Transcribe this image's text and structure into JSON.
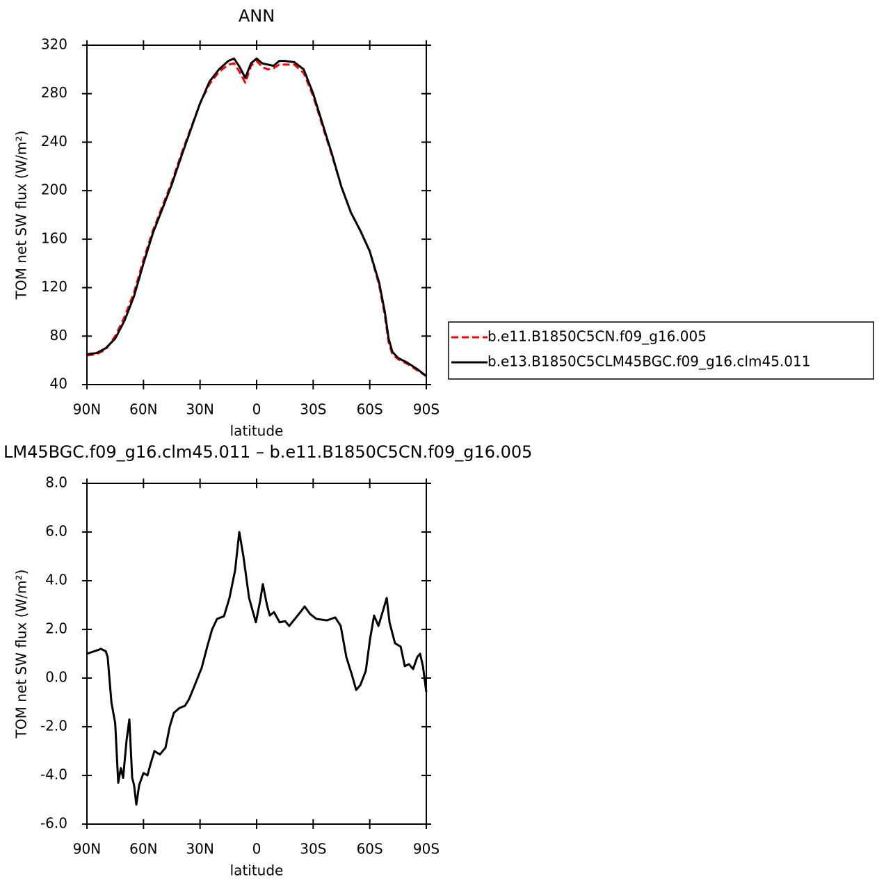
{
  "chart_data": [
    {
      "type": "line",
      "title": "ANN",
      "xlabel": "latitude",
      "ylabel": "TOM net SW flux (W/m²)",
      "x": [
        90,
        85,
        80,
        75,
        70,
        65,
        60,
        55,
        50,
        45,
        40,
        35,
        30,
        25,
        20,
        15,
        12,
        9,
        6,
        3,
        0,
        -3,
        -6,
        -9,
        -12,
        -15,
        -20,
        -25,
        -30,
        -35,
        -40,
        -45,
        -50,
        -55,
        -60,
        -65,
        -68,
        -70,
        -72,
        -75,
        -80,
        -85,
        -90
      ],
      "xlim": [
        90,
        -90
      ],
      "xticks": [
        {
          "value": 90,
          "label": "90N"
        },
        {
          "value": 60,
          "label": "60N"
        },
        {
          "value": 30,
          "label": "30N"
        },
        0,
        {
          "value": -30,
          "label": "30S"
        },
        {
          "value": -60,
          "label": "60S"
        },
        {
          "value": -90,
          "label": "90S"
        }
      ],
      "ylim": [
        40,
        320
      ],
      "yticks": [
        40,
        80,
        120,
        160,
        200,
        240,
        280,
        320
      ],
      "series": [
        {
          "name": "b.e11.B1850C5CN.f09_g16.005",
          "color": "#ff0000",
          "line_style": "dashed",
          "values": [
            64,
            65,
            69,
            80,
            96,
            116,
            143,
            167,
            187,
            207,
            230,
            251,
            272,
            288,
            298,
            304,
            305,
            298,
            289,
            303,
            307,
            302,
            300,
            301,
            304,
            304,
            304,
            297,
            278,
            253,
            229,
            203,
            182,
            167,
            150,
            122,
            97,
            75,
            65,
            61,
            57,
            52,
            47
          ]
        },
        {
          "name": "b.e13.B1850C5CLM45BGC.f09_g16.clm45.011",
          "color": "#000000",
          "line_style": "solid",
          "values": [
            65,
            66,
            70,
            78,
            93,
            113,
            140,
            165,
            185,
            205,
            228,
            250,
            272,
            290,
            300,
            307,
            309,
            302,
            293,
            305,
            309,
            305,
            304,
            303,
            307,
            307,
            306,
            300,
            280,
            255,
            230,
            203,
            182,
            167,
            150,
            124,
            100,
            78,
            67,
            62,
            58,
            53,
            47
          ]
        }
      ]
    },
    {
      "type": "line",
      "title": "LM45BGC.f09_g16.clm45.011 – b.e11.B1850C5CN.f09_g16.005",
      "xlabel": "latitude",
      "ylabel": "TOM net SW flux (W/m²)",
      "x": [
        90,
        84.5,
        82.6,
        80,
        79,
        77,
        75,
        73.4,
        72,
        70.8,
        69,
        67.5,
        66,
        65,
        63.8,
        62.3,
        60,
        57.9,
        56.4,
        54.2,
        51.3,
        48.3,
        46.1,
        43.9,
        40.9,
        38,
        35.8,
        32.8,
        29.1,
        26.2,
        23.6,
        21,
        17.3,
        14.4,
        11.4,
        9.2,
        7,
        4,
        0.4,
        -1.8,
        -3.3,
        -5.5,
        -7,
        -9.2,
        -12.2,
        -15.1,
        -17.3,
        -20.3,
        -23.2,
        -25.5,
        -28.4,
        -31.7,
        -37.3,
        -41.7,
        -44.6,
        -47.6,
        -50.5,
        -52.8,
        -55,
        -57.9,
        -60.1,
        -62.3,
        -64.6,
        -66.8,
        -69,
        -70.5,
        -73.4,
        -76.4,
        -78.6,
        -80.8,
        -83,
        -85.2,
        -86.7,
        -88.2,
        -90
      ],
      "xlim": [
        90,
        -90
      ],
      "xticks": [
        {
          "value": 90,
          "label": "90N"
        },
        {
          "value": 60,
          "label": "60N"
        },
        {
          "value": 30,
          "label": "30N"
        },
        0,
        {
          "value": -30,
          "label": "30S"
        },
        {
          "value": -60,
          "label": "60S"
        },
        {
          "value": -90,
          "label": "90S"
        }
      ],
      "ylim": [
        -6,
        8
      ],
      "yticks": [
        {
          "value": -6,
          "label": "-6.0"
        },
        {
          "value": -4,
          "label": "-4.0"
        },
        {
          "value": -2,
          "label": "-2.0"
        },
        {
          "value": 0,
          "label": "0.0"
        },
        {
          "value": 2,
          "label": "2.0"
        },
        {
          "value": 4,
          "label": "4.0"
        },
        {
          "value": 6,
          "label": "6.0"
        },
        {
          "value": 8,
          "label": "8.0"
        }
      ],
      "series": [
        {
          "color": "#000000",
          "line_style": "solid",
          "values": [
            1.0,
            1.14,
            1.2,
            1.1,
            0.86,
            -1.0,
            -1.86,
            -4.3,
            -3.7,
            -4.1,
            -2.57,
            -1.7,
            -4.1,
            -4.4,
            -5.2,
            -4.4,
            -3.9,
            -4.0,
            -3.57,
            -3.0,
            -3.14,
            -2.86,
            -2.0,
            -1.43,
            -1.23,
            -1.14,
            -0.86,
            -0.29,
            0.43,
            1.29,
            2.0,
            2.43,
            2.54,
            3.29,
            4.43,
            6.0,
            5.0,
            3.29,
            2.29,
            3.14,
            3.86,
            3.0,
            2.57,
            2.71,
            2.29,
            2.34,
            2.14,
            2.43,
            2.71,
            2.94,
            2.63,
            2.43,
            2.37,
            2.49,
            2.14,
            0.86,
            0.14,
            -0.49,
            -0.29,
            0.29,
            1.57,
            2.57,
            2.14,
            2.71,
            3.29,
            2.29,
            1.43,
            1.29,
            0.49,
            0.57,
            0.37,
            0.86,
            1.0,
            0.49,
            -0.57
          ]
        }
      ]
    }
  ]
}
